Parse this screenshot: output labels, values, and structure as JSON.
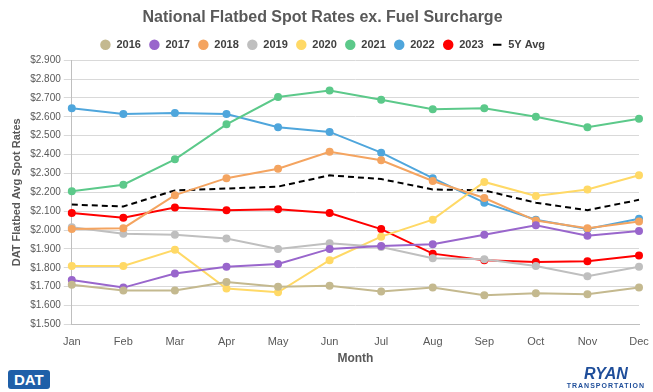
{
  "chart_data": {
    "type": "line",
    "title": "National Flatbed Spot Rates ex. Fuel Surcharge",
    "x_label": "Month",
    "y_label": "DAT Flatbed Avg Spot Rates",
    "annotations": [
      "DAT",
      "RYAN",
      "TRANSPORTATION"
    ],
    "categories": [
      "Jan",
      "Feb",
      "Mar",
      "Apr",
      "May",
      "Jun",
      "Jul",
      "Aug",
      "Sep",
      "Oct",
      "Nov",
      "Dec"
    ],
    "series": [
      {
        "name": "2016",
        "color": "#c4b98f",
        "marker": "circle",
        "line_style": "solid",
        "values": [
          1.71,
          1.68,
          1.68,
          1.725,
          1.7,
          1.705,
          1.675,
          1.695,
          1.655,
          1.665,
          1.66,
          1.695
        ]
      },
      {
        "name": "2017",
        "color": "#9966cc",
        "marker": "circle",
        "line_style": "solid",
        "values": [
          1.735,
          1.695,
          1.77,
          1.805,
          1.82,
          1.9,
          1.915,
          1.925,
          1.975,
          2.025,
          1.97,
          1.995
        ]
      },
      {
        "name": "2018",
        "color": "#f4a460",
        "marker": "circle",
        "line_style": "solid",
        "values": [
          2.005,
          2.01,
          2.185,
          2.275,
          2.325,
          2.415,
          2.37,
          2.26,
          2.17,
          2.05,
          2.01,
          2.045
        ]
      },
      {
        "name": "2019",
        "color": "#bfbfbf",
        "marker": "circle",
        "line_style": "solid",
        "values": [
          2.015,
          1.98,
          1.975,
          1.955,
          1.9,
          1.93,
          1.91,
          1.85,
          1.845,
          1.81,
          1.755,
          1.805
        ]
      },
      {
        "name": "2020",
        "color": "#ffd966",
        "marker": "circle",
        "line_style": "solid",
        "values": [
          1.81,
          1.81,
          1.895,
          1.69,
          1.67,
          1.84,
          1.965,
          2.055,
          2.255,
          2.18,
          2.215,
          2.29
        ]
      },
      {
        "name": "2021",
        "color": "#5cc98a",
        "marker": "circle",
        "line_style": "solid",
        "values": [
          2.205,
          2.24,
          2.375,
          2.56,
          2.705,
          2.74,
          2.69,
          2.64,
          2.645,
          2.6,
          2.545,
          2.59
        ]
      },
      {
        "name": "2022",
        "color": "#4fa6dc",
        "marker": "circle",
        "line_style": "solid",
        "values": [
          2.645,
          2.615,
          2.62,
          2.615,
          2.545,
          2.52,
          2.41,
          2.275,
          2.145,
          2.055,
          2.005,
          2.06
        ]
      },
      {
        "name": "2023",
        "color": "#ff0000",
        "marker": "circle",
        "line_style": "solid",
        "values": [
          2.09,
          2.065,
          2.12,
          2.105,
          2.11,
          2.09,
          2.005,
          1.875,
          1.84,
          1.83,
          1.835,
          1.865
        ]
      },
      {
        "name": "5Y Avg",
        "color": "#000000",
        "marker": "none",
        "line_style": "dashed",
        "values": [
          2.135,
          2.125,
          2.21,
          2.22,
          2.23,
          2.29,
          2.27,
          2.215,
          2.21,
          2.145,
          2.105,
          2.16
        ]
      }
    ],
    "ylim": [
      1.5,
      2.9
    ],
    "yticks": [
      {
        "value": 1.5,
        "label": "$1.500"
      },
      {
        "value": 1.6,
        "label": "$1.600"
      },
      {
        "value": 1.7,
        "label": "$1.700"
      },
      {
        "value": 1.8,
        "label": "$1.800"
      },
      {
        "value": 1.9,
        "label": "$1.900"
      },
      {
        "value": 2.0,
        "label": "$2.000"
      },
      {
        "value": 2.1,
        "label": "$2.100"
      },
      {
        "value": 2.2,
        "label": "$2.200"
      },
      {
        "value": 2.3,
        "label": "$2.300"
      },
      {
        "value": 2.4,
        "label": "$2.400"
      },
      {
        "value": 2.5,
        "label": "$2.500"
      },
      {
        "value": 2.6,
        "label": "$2.600"
      },
      {
        "value": 2.7,
        "label": "$2.700"
      },
      {
        "value": 2.8,
        "label": "$2.800"
      },
      {
        "value": 2.9,
        "label": "$2.900"
      }
    ],
    "grid": true,
    "legend": "top"
  }
}
